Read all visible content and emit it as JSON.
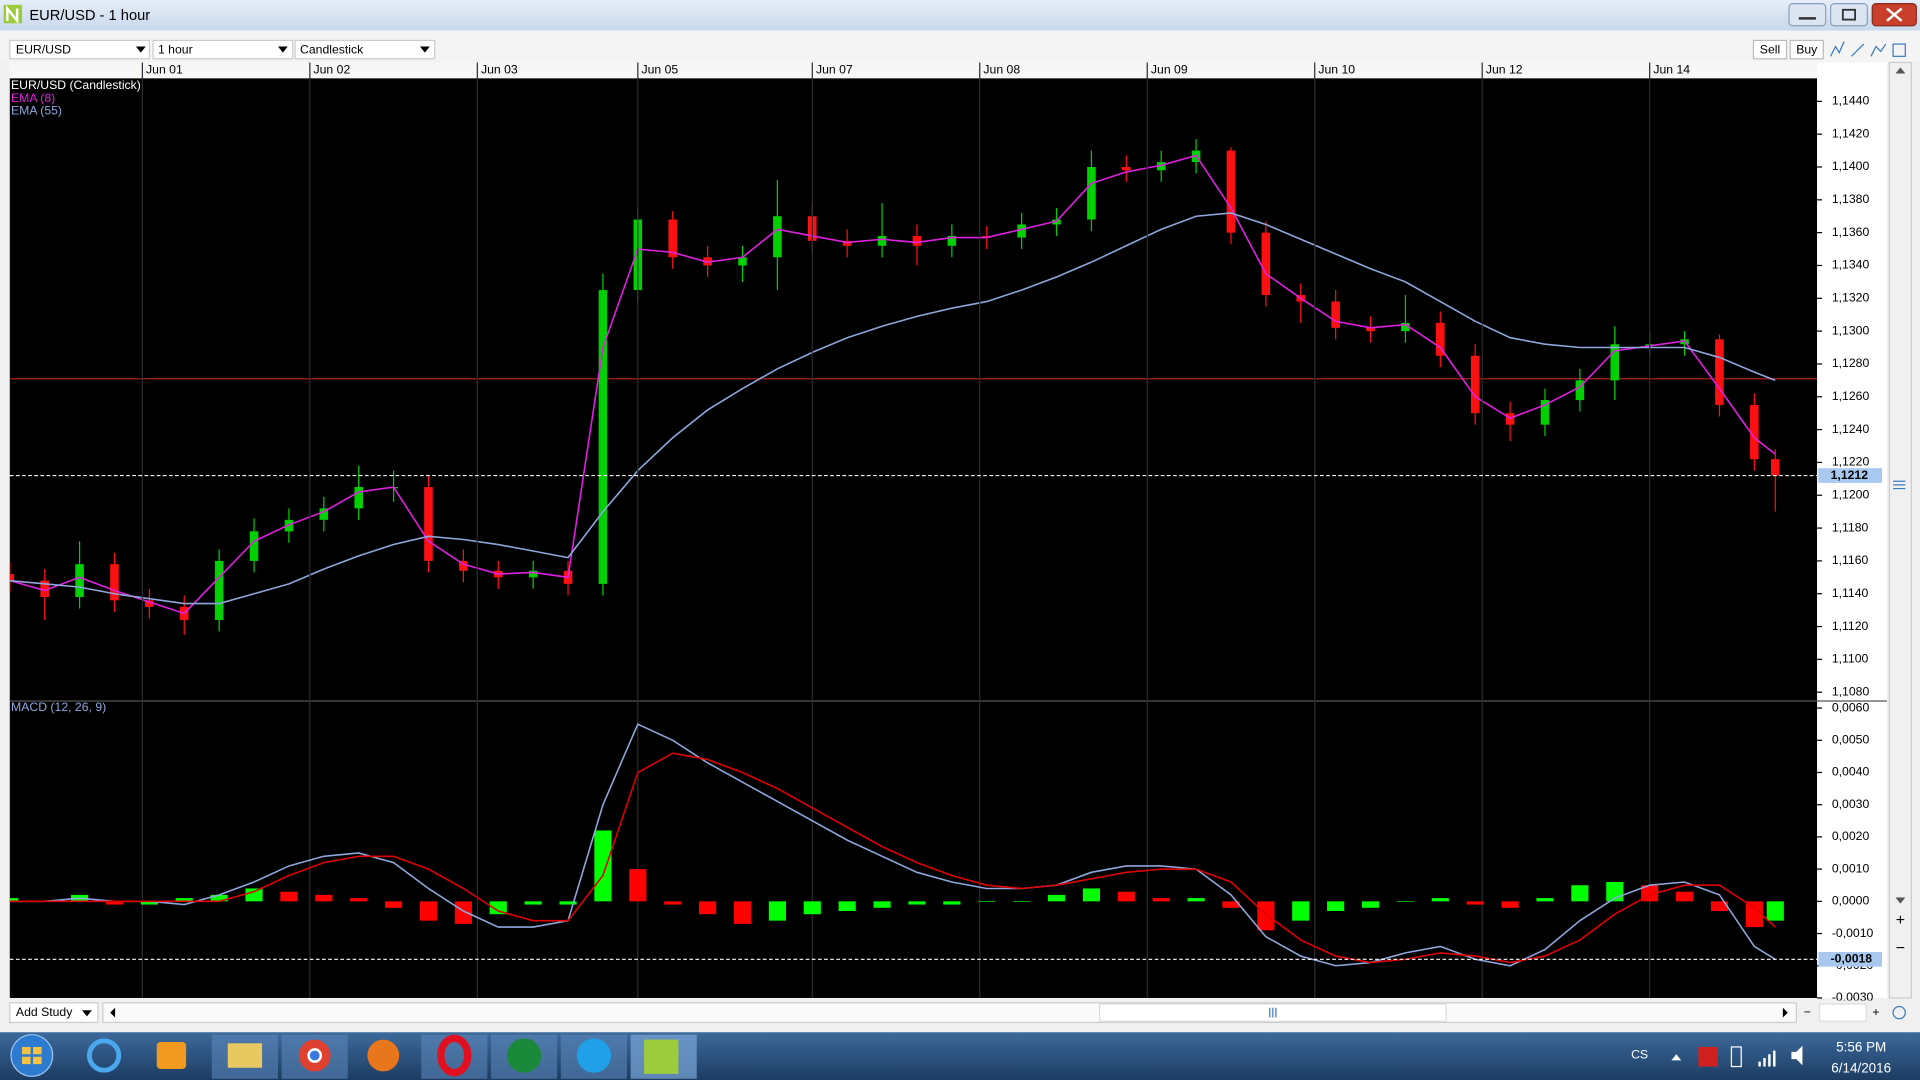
{
  "window": {
    "title": "EUR/USD - 1 hour"
  },
  "toolbar": {
    "symbol": "EUR/USD",
    "interval": "1 hour",
    "chart_style": "Candlestick",
    "sell": "Sell",
    "buy": "Buy"
  },
  "footer": {
    "add_study": "Add Study"
  },
  "taskbar": {
    "language": "CS",
    "time": "5:56 PM",
    "date": "6/14/2016"
  },
  "chart_data": [
    {
      "type": "candlestick",
      "title": "EUR/USD (Candlestick)",
      "up_color": "#00d000",
      "down_color": "#ff1010",
      "x": [
        0,
        5,
        10,
        15,
        20,
        25,
        30,
        35,
        40,
        45,
        50,
        55,
        60,
        65,
        70,
        75,
        80,
        85,
        90,
        95,
        100,
        105,
        110,
        115,
        120,
        125,
        130,
        135,
        140,
        145,
        150,
        155,
        160,
        165,
        170,
        175,
        180,
        185,
        190,
        195,
        200,
        205,
        210,
        215,
        220,
        225,
        230,
        235,
        240,
        245,
        250,
        253
      ],
      "open": [
        1.1152,
        1.1148,
        1.1138,
        1.1158,
        1.1136,
        1.1132,
        1.1124,
        1.116,
        1.1178,
        1.1185,
        1.1192,
        1.1205,
        1.1205,
        1.116,
        1.1154,
        1.115,
        1.1154,
        1.1146,
        1.1325,
        1.1368,
        1.1345,
        1.134,
        1.1345,
        1.137,
        1.1355,
        1.1352,
        1.1358,
        1.1352,
        1.1358,
        1.1357,
        1.1365,
        1.1368,
        1.14,
        1.1398,
        1.1403,
        1.141,
        1.136,
        1.1322,
        1.1318,
        1.1302,
        1.13,
        1.1305,
        1.1285,
        1.125,
        1.1243,
        1.1258,
        1.127,
        1.1292,
        1.1292,
        1.1295,
        1.1255,
        1.1222
      ],
      "high": [
        1.1159,
        1.1155,
        1.1172,
        1.1165,
        1.1143,
        1.1139,
        1.1167,
        1.1186,
        1.1192,
        1.1199,
        1.1218,
        1.1215,
        1.1212,
        1.1167,
        1.116,
        1.116,
        1.116,
        1.1335,
        1.1375,
        1.1373,
        1.1352,
        1.1352,
        1.1392,
        1.1378,
        1.1362,
        1.1378,
        1.1365,
        1.1365,
        1.1364,
        1.1372,
        1.1375,
        1.141,
        1.1407,
        1.141,
        1.1417,
        1.1412,
        1.1367,
        1.1329,
        1.1325,
        1.1309,
        1.1322,
        1.1312,
        1.1292,
        1.1257,
        1.1265,
        1.1277,
        1.1303,
        1.1299,
        1.13,
        1.1298,
        1.1262,
        1.1228
      ],
      "low": [
        1.1141,
        1.1124,
        1.1131,
        1.1129,
        1.1125,
        1.1115,
        1.1117,
        1.1153,
        1.1171,
        1.1178,
        1.1185,
        1.1196,
        1.1153,
        1.1147,
        1.1143,
        1.1143,
        1.1139,
        1.1139,
        1.1318,
        1.1338,
        1.1333,
        1.133,
        1.1325,
        1.1348,
        1.1345,
        1.1345,
        1.134,
        1.1345,
        1.135,
        1.135,
        1.1358,
        1.1361,
        1.1391,
        1.1391,
        1.1396,
        1.1353,
        1.1315,
        1.1305,
        1.1295,
        1.1293,
        1.1293,
        1.1278,
        1.1243,
        1.1233,
        1.1236,
        1.1251,
        1.1258,
        1.1285,
        1.1285,
        1.1248,
        1.1215,
        1.119
      ],
      "close": [
        1.1148,
        1.1138,
        1.1158,
        1.1136,
        1.1132,
        1.1124,
        1.116,
        1.1178,
        1.1185,
        1.1192,
        1.1205,
        1.1205,
        1.116,
        1.1154,
        1.115,
        1.1154,
        1.1146,
        1.1325,
        1.1368,
        1.1345,
        1.134,
        1.1345,
        1.137,
        1.1355,
        1.1352,
        1.1358,
        1.1352,
        1.1358,
        1.1357,
        1.1365,
        1.1368,
        1.14,
        1.1398,
        1.1403,
        1.141,
        1.136,
        1.1322,
        1.1318,
        1.1302,
        1.13,
        1.1305,
        1.1285,
        1.125,
        1.1243,
        1.1258,
        1.127,
        1.1292,
        1.1292,
        1.1295,
        1.1255,
        1.1222,
        1.1212
      ],
      "series": [
        {
          "name": "EMA (8)",
          "color": "#e020e0",
          "values": [
            1.1148,
            1.1142,
            1.115,
            1.1142,
            1.1135,
            1.1128,
            1.115,
            1.1172,
            1.1182,
            1.119,
            1.1202,
            1.1205,
            1.1172,
            1.1158,
            1.1152,
            1.1153,
            1.115,
            1.129,
            1.135,
            1.1348,
            1.1342,
            1.1345,
            1.1362,
            1.1358,
            1.1354,
            1.1356,
            1.1354,
            1.1357,
            1.1357,
            1.1362,
            1.1367,
            1.139,
            1.1397,
            1.1401,
            1.1407,
            1.1375,
            1.1335,
            1.132,
            1.1306,
            1.1302,
            1.1304,
            1.129,
            1.126,
            1.1247,
            1.1255,
            1.1266,
            1.1288,
            1.1291,
            1.1294,
            1.1265,
            1.1235,
            1.1225
          ]
        },
        {
          "name": "EMA (55)",
          "color": "#8ea6dc",
          "values": [
            1.1148,
            1.1146,
            1.1144,
            1.114,
            1.1137,
            1.1134,
            1.1134,
            1.114,
            1.1146,
            1.1155,
            1.1163,
            1.117,
            1.1175,
            1.1173,
            1.117,
            1.1166,
            1.1162,
            1.119,
            1.1215,
            1.1235,
            1.1252,
            1.1265,
            1.1277,
            1.1287,
            1.1296,
            1.1303,
            1.1309,
            1.1314,
            1.1318,
            1.1325,
            1.1333,
            1.1342,
            1.1352,
            1.1362,
            1.137,
            1.1372,
            1.1365,
            1.1356,
            1.1347,
            1.1338,
            1.133,
            1.1318,
            1.1306,
            1.1296,
            1.1292,
            1.129,
            1.129,
            1.129,
            1.129,
            1.1284,
            1.1275,
            1.127
          ]
        }
      ],
      "hlines": [
        {
          "value": 1.1271,
          "color": "#b02020"
        }
      ],
      "last": {
        "value": 1.1212,
        "label": "1,1212"
      },
      "xlim": [
        0,
        259
      ],
      "xticks": [
        {
          "value": 19,
          "label": "Jun 01"
        },
        {
          "value": 43,
          "label": "Jun 02"
        },
        {
          "value": 67,
          "label": "Jun 03"
        },
        {
          "value": 90,
          "label": "Jun 05"
        },
        {
          "value": 115,
          "label": "Jun 07"
        },
        {
          "value": 139,
          "label": "Jun 08"
        },
        {
          "value": 163,
          "label": "Jun 09"
        },
        {
          "value": 187,
          "label": "Jun 10"
        },
        {
          "value": 211,
          "label": "Jun 12"
        },
        {
          "value": 235,
          "label": "Jun 14"
        }
      ],
      "ylim": [
        1.1075,
        1.1454
      ],
      "yticks": [
        {
          "value": 1.108,
          "label": "1,1080"
        },
        {
          "value": 1.11,
          "label": "1,1100"
        },
        {
          "value": 1.112,
          "label": "1,1120"
        },
        {
          "value": 1.114,
          "label": "1,1140"
        },
        {
          "value": 1.116,
          "label": "1,1160"
        },
        {
          "value": 1.118,
          "label": "1,1180"
        },
        {
          "value": 1.12,
          "label": "1,1200"
        },
        {
          "value": 1.122,
          "label": "1,1220"
        },
        {
          "value": 1.124,
          "label": "1,1240"
        },
        {
          "value": 1.126,
          "label": "1,1260"
        },
        {
          "value": 1.128,
          "label": "1,1280"
        },
        {
          "value": 1.13,
          "label": "1,1300"
        },
        {
          "value": 1.132,
          "label": "1,1320"
        },
        {
          "value": 1.134,
          "label": "1,1340"
        },
        {
          "value": 1.136,
          "label": "1,1360"
        },
        {
          "value": 1.138,
          "label": "1,1380"
        },
        {
          "value": 1.14,
          "label": "1,1400"
        },
        {
          "value": 1.142,
          "label": "1,1420"
        },
        {
          "value": 1.144,
          "label": "1,1440"
        }
      ]
    },
    {
      "type": "macd",
      "title": "MACD (12, 26, 9)",
      "title_color": "#8ea6dc",
      "up_color": "#00ff00",
      "down_color": "#ff0000",
      "x": [
        0,
        5,
        10,
        15,
        20,
        25,
        30,
        35,
        40,
        45,
        50,
        55,
        60,
        65,
        70,
        75,
        80,
        85,
        90,
        95,
        100,
        105,
        110,
        115,
        120,
        125,
        130,
        135,
        140,
        145,
        150,
        155,
        160,
        165,
        170,
        175,
        180,
        185,
        190,
        195,
        200,
        205,
        210,
        215,
        220,
        225,
        230,
        235,
        240,
        245,
        250,
        253
      ],
      "values": [
        0.0001,
        0.0,
        0.0002,
        -0.0001,
        -0.0001,
        0.0001,
        0.0002,
        0.0004,
        0.0003,
        0.0002,
        0.0001,
        -0.0002,
        -0.0006,
        -0.0007,
        -0.0004,
        -0.0001,
        -0.0001,
        0.0022,
        0.001,
        -0.0001,
        -0.0004,
        -0.0007,
        -0.0006,
        -0.0004,
        -0.0003,
        -0.0002,
        -0.0001,
        -0.0001,
        0.0,
        0.0,
        0.0002,
        0.0004,
        0.0003,
        0.0001,
        0.0001,
        -0.0002,
        -0.0009,
        -0.0006,
        -0.0003,
        -0.0002,
        0.0,
        0.0001,
        -0.0001,
        -0.0002,
        0.0001,
        0.0005,
        0.0006,
        0.0005,
        0.0003,
        -0.0003,
        -0.0008,
        -0.0006
      ],
      "series": [
        {
          "color": "#8ea6dc",
          "values": [
            0.0,
            0.0,
            0.0001,
            0.0,
            0.0,
            -0.0001,
            0.0002,
            0.0006,
            0.0011,
            0.0014,
            0.0015,
            0.0012,
            0.0004,
            -0.0003,
            -0.0008,
            -0.0008,
            -0.0006,
            0.003,
            0.0055,
            0.005,
            0.0043,
            0.0037,
            0.0031,
            0.0025,
            0.0019,
            0.0014,
            0.0009,
            0.0006,
            0.0004,
            0.0004,
            0.0005,
            0.0009,
            0.0011,
            0.0011,
            0.001,
            0.0002,
            -0.0011,
            -0.0017,
            -0.002,
            -0.0019,
            -0.0016,
            -0.0014,
            -0.0018,
            -0.002,
            -0.0015,
            -0.0006,
            0.0001,
            0.0005,
            0.0006,
            0.0002,
            -0.0014,
            -0.0018
          ]
        },
        {
          "color": "#e00000",
          "values": [
            0.0,
            0.0,
            0.0,
            0.0,
            0.0,
            0.0,
            0.0,
            0.0003,
            0.0008,
            0.0012,
            0.0014,
            0.0014,
            0.001,
            0.0004,
            -0.0003,
            -0.0006,
            -0.0006,
            0.0008,
            0.004,
            0.0046,
            0.0044,
            0.004,
            0.0035,
            0.0029,
            0.0023,
            0.0017,
            0.0012,
            0.0008,
            0.0005,
            0.0004,
            0.0005,
            0.0007,
            0.0009,
            0.001,
            0.001,
            0.0006,
            -0.0004,
            -0.0012,
            -0.0017,
            -0.0019,
            -0.0018,
            -0.0016,
            -0.0017,
            -0.0019,
            -0.0017,
            -0.0012,
            -0.0004,
            0.0002,
            0.0005,
            0.0005,
            -0.0002,
            -0.0008
          ]
        }
      ],
      "last": {
        "value": -0.0018,
        "label": "-0,0018"
      },
      "xlim": [
        0,
        259
      ],
      "ylim": [
        -0.003,
        0.0062
      ],
      "yticks": [
        {
          "value": -0.003,
          "label": "-0,0030"
        },
        {
          "value": -0.002,
          "label": "-0,0020"
        },
        {
          "value": -0.001,
          "label": "-0,0010"
        },
        {
          "value": 0,
          "label": "0,0000"
        },
        {
          "value": 0.001,
          "label": "0,0010"
        },
        {
          "value": 0.002,
          "label": "0,0020"
        },
        {
          "value": 0.003,
          "label": "0,0030"
        },
        {
          "value": 0.004,
          "label": "0,0040"
        },
        {
          "value": 0.005,
          "label": "0,0050"
        },
        {
          "value": 0.006,
          "label": "0,0060"
        }
      ]
    }
  ]
}
